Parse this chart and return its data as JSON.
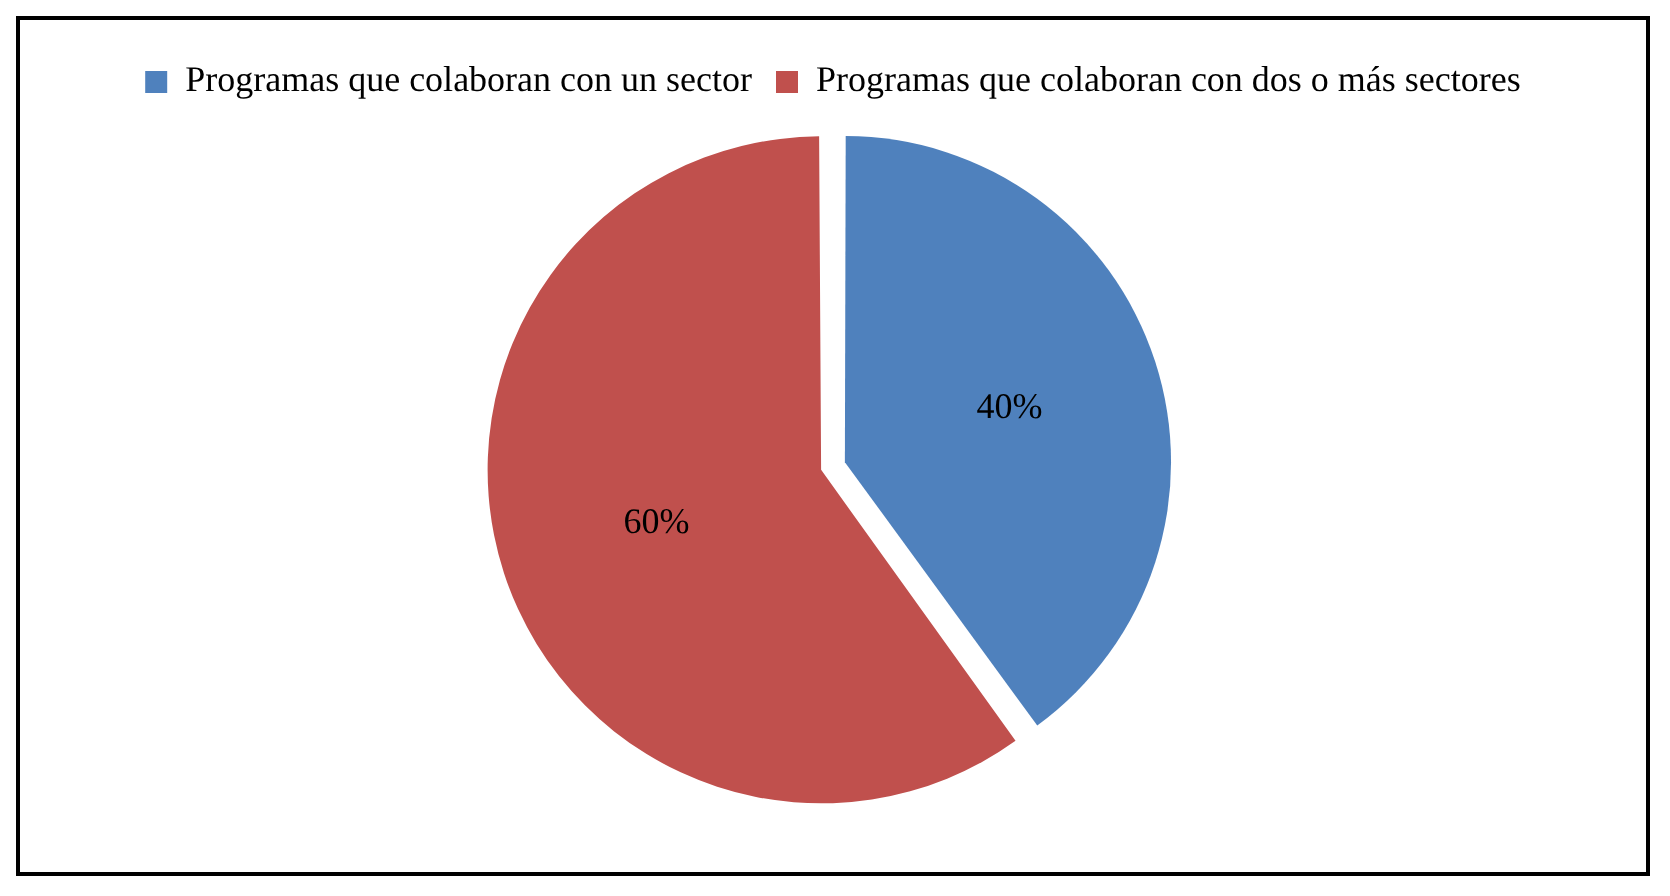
{
  "chart_data": {
    "type": "pie",
    "categories": [
      "Programas que colaboran con un sector",
      "Programas que colaboran con dos o más sectores"
    ],
    "values": [
      40,
      60
    ],
    "value_labels": [
      "40%",
      "60%"
    ],
    "colors": [
      "#4f81bd",
      "#c0504d"
    ],
    "legend": "top"
  }
}
